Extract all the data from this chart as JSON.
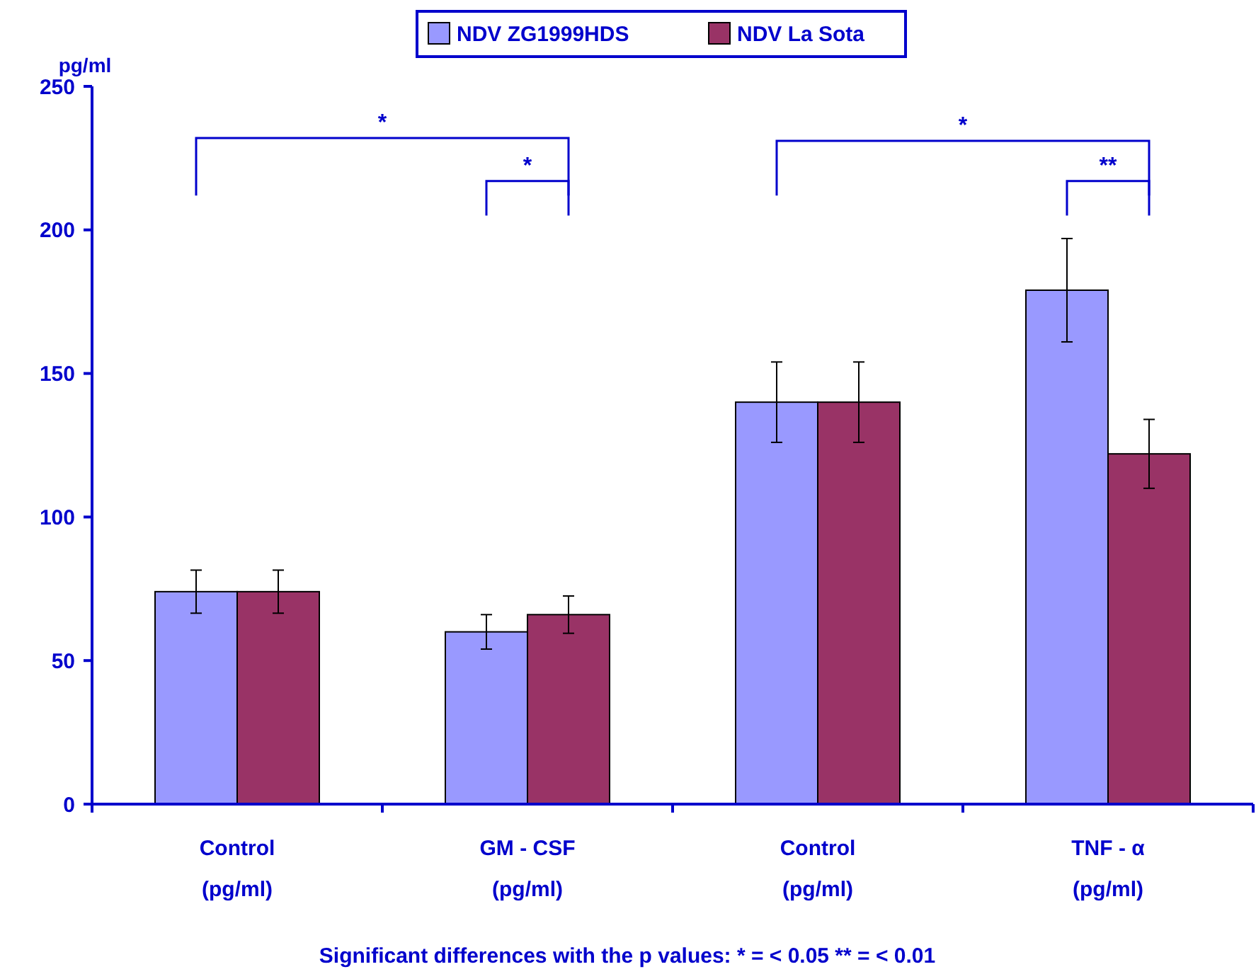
{
  "chart_data": {
    "type": "bar",
    "ylabel": "pg/ml",
    "categories": [
      "Control\n(pg/ml)",
      "GM - CSF\n(pg/ml)",
      "Control\n(pg/ml)",
      "TNF - α\n(pg/ml)"
    ],
    "series": [
      {
        "name": "NDV ZG1999HDS",
        "color": "#9999ff",
        "values": [
          74,
          60,
          140,
          179
        ],
        "errors": [
          7.5,
          6,
          14,
          18
        ]
      },
      {
        "name": "NDV La Sota",
        "color": "#993366",
        "values": [
          74,
          66,
          140,
          122
        ],
        "errors": [
          7.5,
          6.5,
          14,
          12
        ]
      }
    ],
    "ylim": [
      0,
      250
    ],
    "yticks": [
      0,
      50,
      100,
      150,
      200,
      250
    ],
    "legend": "top",
    "annotations": [
      "*",
      "*",
      "*",
      "**",
      "Significant differences with the p values: * = < 0.05 ** = < 0.01"
    ]
  }
}
